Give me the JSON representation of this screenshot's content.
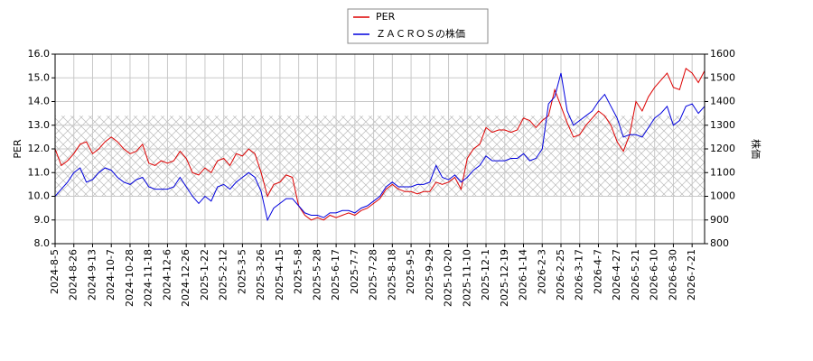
{
  "chart_data": {
    "type": "line",
    "ylabel": "PER",
    "y2label": "株価",
    "categories": [
      "2024-8-5",
      null,
      null,
      "2024-8-26",
      null,
      null,
      "2024-9-13",
      null,
      null,
      "2024-10-7",
      null,
      null,
      "2024-10-28",
      null,
      null,
      "2024-11-18",
      null,
      null,
      "2024-12-6",
      null,
      null,
      "2024-12-26",
      null,
      null,
      "2025-1-22",
      null,
      null,
      "2025-2-12",
      null,
      null,
      "2025-3-5",
      null,
      null,
      "2025-3-26",
      null,
      null,
      "2025-4-15",
      null,
      null,
      "2025-5-8",
      null,
      null,
      "2025-5-28",
      null,
      null,
      "2025-6-17",
      null,
      null,
      "2025-7-7",
      null,
      null,
      "2025-7-28",
      null,
      null,
      "2025-8-18",
      null,
      null,
      "2025-9-5",
      null,
      null,
      "2025-9-29",
      null,
      null,
      "2025-10-20",
      null,
      null,
      "2025-11-10",
      null,
      null,
      "2025-12-1",
      null,
      null,
      "2025-12-19",
      null,
      null,
      "2026-1-14",
      null,
      null,
      "2026-2-3",
      null,
      null,
      "2026-2-25",
      null,
      null,
      "2026-3-17",
      null,
      null,
      "2026-4-7",
      null,
      null,
      "2026-4-27",
      null,
      null,
      "2026-5-21",
      null,
      null,
      "2026-6-10",
      null,
      null,
      "2026-6-30",
      null,
      null,
      "2026-7-21",
      null,
      null
    ],
    "series": [
      {
        "name": "PER",
        "color": "#dd0000",
        "values": [
          12.0,
          11.3,
          11.5,
          11.8,
          12.2,
          12.3,
          11.8,
          12.0,
          12.3,
          12.5,
          12.3,
          12.0,
          11.8,
          11.9,
          12.2,
          11.4,
          11.3,
          11.5,
          11.4,
          11.5,
          11.9,
          11.6,
          11.0,
          10.9,
          11.2,
          11.0,
          11.5,
          11.6,
          11.3,
          11.8,
          11.7,
          12.0,
          11.8,
          11.0,
          10.0,
          10.5,
          10.6,
          10.9,
          10.8,
          9.6,
          9.2,
          9.0,
          9.1,
          9.0,
          9.2,
          9.1,
          9.2,
          9.3,
          9.2,
          9.4,
          9.5,
          9.7,
          9.9,
          10.3,
          10.5,
          10.3,
          10.2,
          10.2,
          10.1,
          10.2,
          10.2,
          10.6,
          10.5,
          10.6,
          10.8,
          10.3,
          11.6,
          12.0,
          12.2,
          12.9,
          12.7,
          12.8,
          12.8,
          12.7,
          12.8,
          13.3,
          13.2,
          12.9,
          13.2,
          13.4,
          14.5,
          13.8,
          13.1,
          12.5,
          12.6,
          13.0,
          13.3,
          13.6,
          13.4,
          13.0,
          12.3,
          11.9,
          12.6,
          14.0,
          13.6,
          14.2,
          14.6,
          14.9,
          15.2,
          14.6,
          14.5,
          15.4,
          15.2,
          14.8,
          15.3
        ]
      },
      {
        "name": "ＺＡＣＲＯＳの株価",
        "color": "#0000dd",
        "axis": "y2",
        "values": [
          1000,
          1030,
          1060,
          1100,
          1120,
          1060,
          1070,
          1100,
          1120,
          1110,
          1080,
          1060,
          1050,
          1070,
          1080,
          1040,
          1030,
          1030,
          1030,
          1040,
          1080,
          1040,
          1000,
          970,
          1000,
          980,
          1040,
          1050,
          1030,
          1060,
          1080,
          1100,
          1080,
          1020,
          900,
          950,
          970,
          990,
          990,
          960,
          930,
          920,
          920,
          910,
          930,
          930,
          940,
          940,
          930,
          950,
          960,
          980,
          1000,
          1040,
          1060,
          1040,
          1040,
          1040,
          1050,
          1050,
          1060,
          1130,
          1080,
          1070,
          1090,
          1060,
          1080,
          1110,
          1130,
          1170,
          1150,
          1150,
          1150,
          1160,
          1160,
          1180,
          1150,
          1160,
          1200,
          1390,
          1420,
          1520,
          1360,
          1300,
          1320,
          1340,
          1360,
          1400,
          1430,
          1380,
          1330,
          1250,
          1260,
          1260,
          1250,
          1290,
          1330,
          1350,
          1380,
          1300,
          1320,
          1380,
          1390,
          1350,
          1380
        ]
      }
    ],
    "ylim": [
      8,
      16
    ],
    "yticks": [
      {
        "value": 8,
        "label": "8.0"
      },
      {
        "value": 9,
        "label": "9.0"
      },
      {
        "value": 10,
        "label": "10.0"
      },
      {
        "value": 11,
        "label": "11.0"
      },
      {
        "value": 12,
        "label": "12.0"
      },
      {
        "value": 13,
        "label": "13.0"
      },
      {
        "value": 14,
        "label": "14.0"
      },
      {
        "value": 15,
        "label": "15.0"
      },
      {
        "value": 16,
        "label": "16.0"
      }
    ],
    "y2lim": [
      800,
      1600
    ],
    "y2ticks": [
      800,
      900,
      1000,
      1100,
      1200,
      1300,
      1400,
      1500,
      1600
    ],
    "shaded_range": [
      10,
      13.4
    ],
    "grid": true,
    "legend": "top"
  }
}
